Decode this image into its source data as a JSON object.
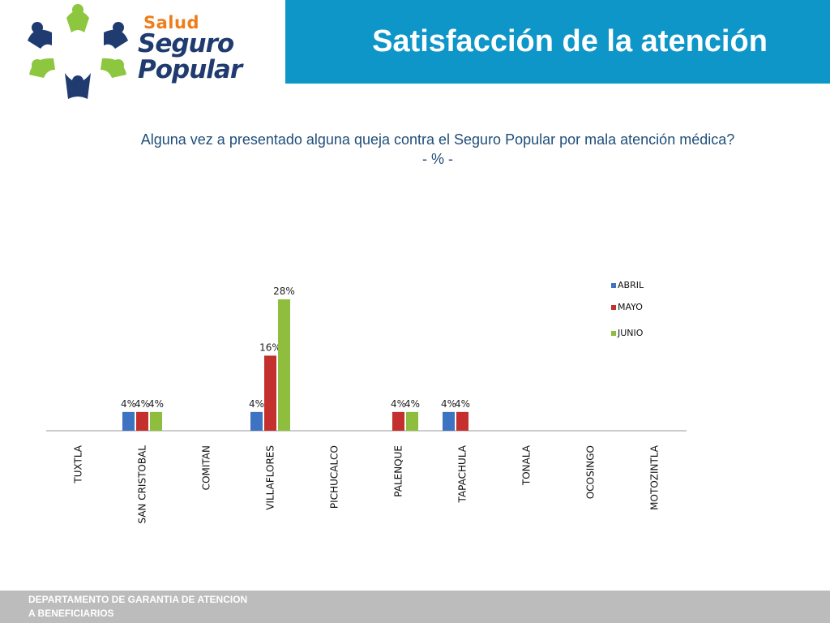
{
  "header": {
    "title": "Satisfacción de la atención",
    "logo": {
      "line1": "Salud",
      "line2": "Seguro",
      "line3": "Popular"
    }
  },
  "question": {
    "line1": "Alguna vez a presentado alguna queja contra el Seguro Popular por mala atención médica?",
    "line2": "- % -"
  },
  "footer": {
    "line1": "DEPARTAMENTO DE GARANTIA DE ATENCION",
    "line2": "A BENEFICIARIOS"
  },
  "colors": {
    "ABRIL": "#3d73c0",
    "MAYO": "#c3302d",
    "JUNIO": "#8fbe3f",
    "title_bar": "#0e96c9"
  },
  "chart_data": {
    "type": "bar",
    "title": "",
    "categories": [
      "TUXTLA",
      "SAN CRISTOBAL",
      "COMITAN",
      "VILLAFLORES",
      "PICHUCALCO",
      "PALENQUE",
      "TAPACHULA",
      "TONALA",
      "OCOSINGO",
      "MOTOZINTLA"
    ],
    "series": [
      {
        "name": "ABRIL",
        "values": [
          0,
          4,
          0,
          4,
          0,
          0,
          4,
          0,
          0,
          0
        ]
      },
      {
        "name": "MAYO",
        "values": [
          0,
          4,
          0,
          16,
          0,
          4,
          4,
          0,
          0,
          0
        ]
      },
      {
        "name": "JUNIO",
        "values": [
          0,
          4,
          0,
          28,
          0,
          4,
          0,
          0,
          0,
          0
        ]
      }
    ],
    "value_labels": {
      "ABRIL": [
        "",
        "4%",
        "",
        "4%",
        "",
        "",
        "4%",
        "",
        "",
        ""
      ],
      "MAYO": [
        "",
        "4%",
        "",
        "16%",
        "",
        "4%",
        "4%",
        "",
        "",
        ""
      ],
      "JUNIO": [
        "",
        "4%",
        "",
        "28%",
        "",
        "4%",
        "",
        "",
        "",
        ""
      ]
    },
    "ylim": [
      0,
      30
    ],
    "grid": false,
    "legend_position": "top-right"
  }
}
